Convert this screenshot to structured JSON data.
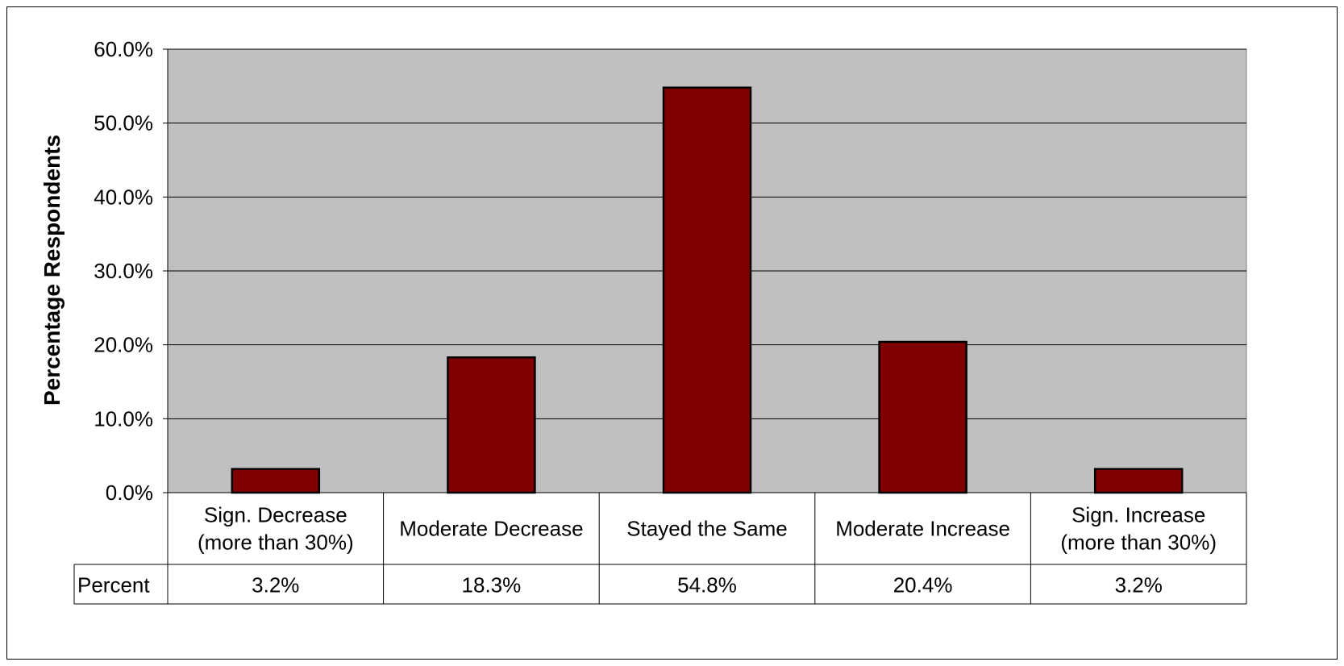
{
  "chart_data": {
    "type": "bar",
    "title": "",
    "xlabel": "",
    "ylabel": "Percentage Respondents",
    "ylim": [
      0,
      60
    ],
    "yticks": [
      "0.0%",
      "10.0%",
      "20.0%",
      "30.0%",
      "40.0%",
      "50.0%",
      "60.0%"
    ],
    "grid": true,
    "categories": [
      [
        "Sign. Decrease",
        "(more than 30%)"
      ],
      [
        "Moderate Decrease"
      ],
      [
        "Stayed the Same"
      ],
      [
        "Moderate Increase"
      ],
      [
        "Sign. Increase",
        "(more than 30%)"
      ]
    ],
    "series": [
      {
        "name": "Percent",
        "values": [
          3.2,
          18.3,
          54.8,
          20.4,
          3.2
        ]
      }
    ],
    "data_table": {
      "row_label": "Percent",
      "values": [
        "3.2%",
        "18.3%",
        "54.8%",
        "20.4%",
        "3.2%"
      ]
    },
    "colors": {
      "bar": "#800000",
      "plot_area": "#c0c0c0",
      "grid": "#000000"
    }
  }
}
